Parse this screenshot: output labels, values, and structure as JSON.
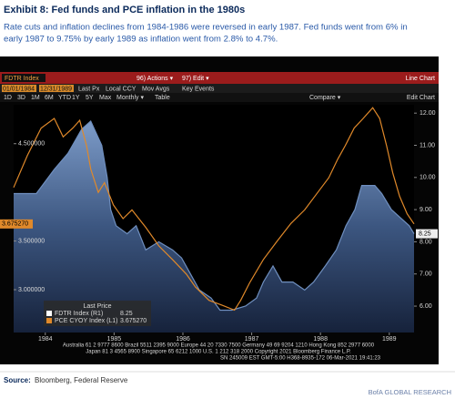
{
  "header": {
    "title": "Exhibit 8: Fed funds and PCE inflation in the 1980s",
    "subtitle": [
      "Rate cuts and inflation declines from 1984-1986 were reversed in early 1987. Fed funds went from 6% in",
      "early 1987 to 9.75% by early 1989 as inflation went from 2.8% to 4.7%."
    ]
  },
  "terminal": {
    "ticker": "FDTR Index",
    "actions": "96) Actions ▾",
    "edit": "97) Edit ▾",
    "view": "Line Chart",
    "start_date": "01/01/1984",
    "end_date": "12/31/1989",
    "field": "Last Px",
    "currency": "Local CCY",
    "mov_avgs": "Mov Avgs",
    "key_events": "Key Events",
    "ranges": [
      "1D",
      "3D",
      "1M",
      "6M",
      "YTD",
      "1Y",
      "5Y",
      "Max"
    ],
    "period": "Monthly ▾",
    "table": "Table",
    "compare": "Compare ▾",
    "edit_chart": "Edit Chart",
    "footer": [
      "Australia 61 2 9777 8600 Brazil 5511 2395 9000 Europe 44 20 7330 7500 Germany 49 69 9204 1210 Hong Kong 852 2977 6000",
      "Japan 81 3 4565 8900      Singapore 65 6212 1000      U.S. 1 212 318 2000      Copyright 2021 Bloomberg Finance L.P.",
      "SN 245009 EST  GMT-5:00 H368-8935-172 06-Mar-2021 19:41:23"
    ]
  },
  "chart_data": {
    "type": "line",
    "legend_title": "Last Price",
    "xlim": [
      1983.54,
      1989.36
    ],
    "xticks": [
      1984,
      1985,
      1986,
      1987,
      1988,
      1989
    ],
    "ylim": [
      2.56,
      4.9
    ],
    "yticks": [
      {
        "value": 3,
        "label": "3.000000"
      },
      {
        "value": 3.5,
        "label": "3.500000"
      },
      {
        "value": 4.5,
        "label": "4.500000"
      }
    ],
    "y2lim": [
      5.18,
      12.26
    ],
    "y2ticks": [
      {
        "value": 6,
        "label": "6.00"
      },
      {
        "value": 7,
        "label": "7.00"
      },
      {
        "value": 8,
        "label": "8.00"
      },
      {
        "value": 9,
        "label": "9.00"
      },
      {
        "value": 10,
        "label": "10.00"
      },
      {
        "value": 11,
        "label": "11.00"
      },
      {
        "value": 12,
        "label": "12.00"
      }
    ],
    "series": [
      {
        "name": "FDTR Index (R1)",
        "color": "#6f8fbf",
        "kind": "area",
        "axis": "y2",
        "x": [
          1983.54,
          1983.87,
          1984.13,
          1984.33,
          1984.53,
          1984.66,
          1984.82,
          1984.9,
          1984.95,
          1985.03,
          1985.19,
          1985.32,
          1985.46,
          1985.65,
          1985.85,
          1985.98,
          1986.11,
          1986.24,
          1986.41,
          1986.54,
          1986.71,
          1986.91,
          1987.07,
          1987.17,
          1987.31,
          1987.44,
          1987.6,
          1987.77,
          1987.9,
          1988.07,
          1988.23,
          1988.37,
          1988.5,
          1988.6,
          1988.79,
          1988.89,
          1989.03,
          1989.16,
          1989.29,
          1989.36
        ],
        "values": [
          9.5,
          9.5,
          10.25,
          10.75,
          11.5,
          11.75,
          11.0,
          10.0,
          9.0,
          8.5,
          8.25,
          8.5,
          7.75,
          8.0,
          7.75,
          7.5,
          7.0,
          6.5,
          6.25,
          5.875,
          5.875,
          6.0,
          6.25,
          6.75,
          7.25,
          6.75,
          6.75,
          6.5,
          6.75,
          7.25,
          7.75,
          8.5,
          9.0,
          9.75,
          9.75,
          9.5,
          9.0,
          8.75,
          8.5,
          8.25
        ]
      },
      {
        "name": "PCE CYOY Index (L1)",
        "color": "#e0892a",
        "kind": "line",
        "axis": "y",
        "last_label": "3.675270",
        "x": [
          1983.54,
          1983.74,
          1983.94,
          1984.13,
          1984.26,
          1984.4,
          1984.5,
          1984.6,
          1984.66,
          1984.77,
          1984.86,
          1984.99,
          1985.13,
          1985.26,
          1985.46,
          1985.65,
          1985.85,
          1986.05,
          1986.18,
          1986.38,
          1986.57,
          1986.75,
          1986.84,
          1986.97,
          1987.17,
          1987.37,
          1987.57,
          1987.77,
          1987.96,
          1988.12,
          1988.25,
          1988.36,
          1988.49,
          1988.62,
          1988.76,
          1988.86,
          1988.96,
          1989.05,
          1989.15,
          1989.26,
          1989.36
        ],
        "values": [
          4.05,
          4.38,
          4.66,
          4.76,
          4.57,
          4.66,
          4.74,
          4.48,
          4.24,
          4.0,
          4.1,
          3.87,
          3.73,
          3.82,
          3.64,
          3.45,
          3.31,
          3.16,
          3.03,
          2.89,
          2.84,
          2.79,
          2.89,
          3.07,
          3.31,
          3.5,
          3.68,
          3.82,
          4.0,
          4.15,
          4.34,
          4.48,
          4.66,
          4.76,
          4.87,
          4.76,
          4.48,
          4.2,
          3.96,
          3.78,
          3.67527
        ]
      }
    ]
  },
  "source": {
    "label": "Source:",
    "text": "Bloomberg, Federal Reserve",
    "brand": "BofA GLOBAL RESEARCH"
  }
}
